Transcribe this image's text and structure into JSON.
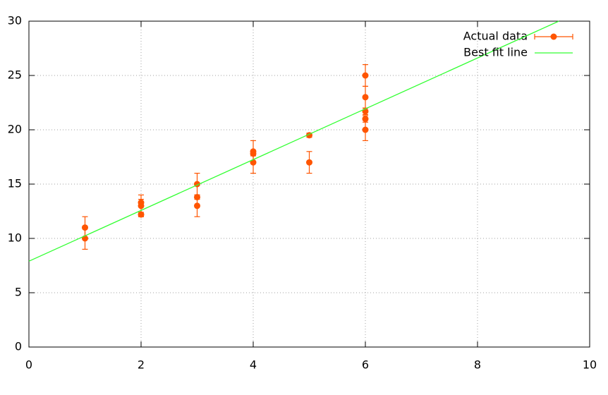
{
  "chart_data": {
    "type": "errorbar-fit",
    "series": [
      {
        "name": "Actual data",
        "type": "errorbar",
        "color": "#ff5500",
        "x": [
          1,
          1,
          2,
          2,
          2,
          3,
          3,
          3,
          4,
          4,
          4,
          5,
          5,
          6,
          6,
          6,
          6,
          6
        ],
        "values": [
          11,
          10,
          13.3,
          13,
          12.2,
          15,
          13.8,
          13,
          18,
          17.8,
          17,
          19.5,
          17,
          25,
          23,
          21.7,
          21,
          20
        ],
        "errors": [
          1,
          1,
          0.3,
          1,
          0.2,
          1,
          0.2,
          1,
          1,
          0.2,
          1,
          0.2,
          1,
          1,
          1,
          0.3,
          0.3,
          1
        ]
      },
      {
        "name": "Best fit line",
        "type": "line",
        "color": "#33ff33",
        "x": [
          0,
          9.45
        ],
        "values": [
          7.9,
          30
        ]
      }
    ],
    "xlim": [
      0,
      10
    ],
    "xticks": [
      0,
      2,
      4,
      6,
      8,
      10
    ],
    "ylim": [
      0,
      30
    ],
    "yticks": [
      0,
      5,
      10,
      15,
      20,
      25,
      30
    ],
    "grid": true,
    "legend": "top-right"
  }
}
